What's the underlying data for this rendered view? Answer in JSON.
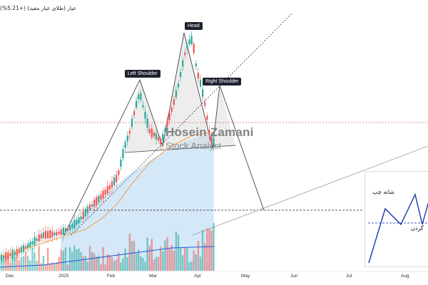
{
  "header": {
    "title": "عیار (طلای عیار مفید)",
    "change": "+5.21%"
  },
  "annotations": {
    "head": "Head",
    "left_shoulder": "Left Shoulder",
    "right_shoulder": "Right Shoulder"
  },
  "watermark": {
    "name": "Hosein Zamani",
    "role": "Stock Analyst"
  },
  "x_axis": {
    "labels": [
      "Dec",
      "2025",
      "Feb",
      "Mar",
      "Apr",
      "May",
      "Jun",
      "Jul",
      "Aug"
    ]
  },
  "inset": {
    "left_shoulder_label": "شانه چپ",
    "neck_label": "گردن"
  },
  "colors": {
    "up": "#26a69a",
    "down": "#ef5350",
    "ma_line": "#f0a35a",
    "ma_long": "#2962ff",
    "projection_fill": "#cde4f7"
  }
}
